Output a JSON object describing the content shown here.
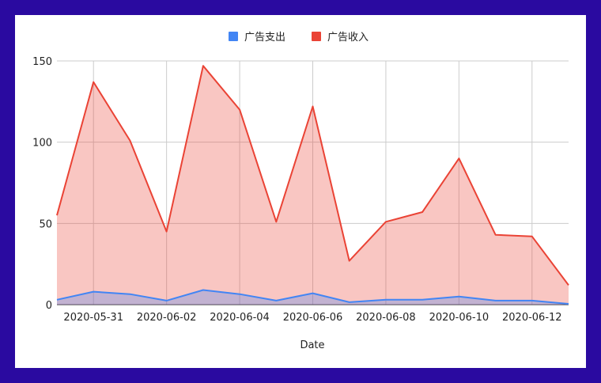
{
  "chart_data": {
    "type": "area",
    "x": [
      "2020-05-30",
      "2020-05-31",
      "2020-06-01",
      "2020-06-02",
      "2020-06-03",
      "2020-06-04",
      "2020-06-05",
      "2020-06-06",
      "2020-06-07",
      "2020-06-08",
      "2020-06-09",
      "2020-06-10",
      "2020-06-11",
      "2020-06-12",
      "2020-06-13"
    ],
    "x_tick_labels": [
      "2020-05-31",
      "2020-06-02",
      "2020-06-04",
      "2020-06-06",
      "2020-06-08",
      "2020-06-10",
      "2020-06-12"
    ],
    "series": [
      {
        "name": "广告支出",
        "color": "#4285f4",
        "values": [
          3,
          8,
          6.5,
          2.5,
          9,
          6.5,
          2.5,
          7,
          1.5,
          3,
          3,
          5,
          2.5,
          2.5,
          0.5
        ]
      },
      {
        "name": "广告收入",
        "color": "#ea4335",
        "values": [
          55,
          137,
          101,
          45,
          147,
          120,
          51,
          122,
          27,
          51,
          57,
          90,
          43,
          42,
          12
        ]
      }
    ],
    "xlabel": "Date",
    "ylabel": "",
    "ylim": [
      0,
      150
    ],
    "y_ticks": [
      0,
      50,
      100,
      150
    ],
    "grid": true,
    "legend_position": "top"
  }
}
